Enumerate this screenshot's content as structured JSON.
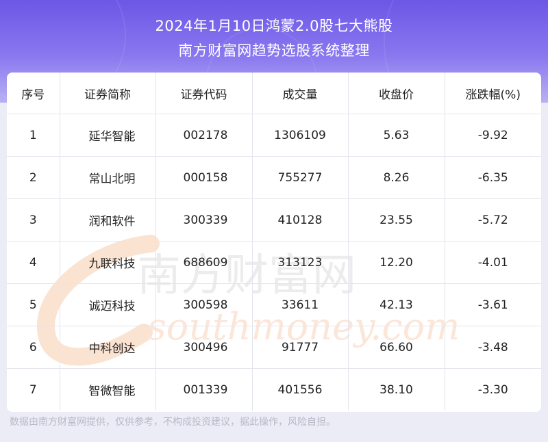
{
  "header": {
    "title": "2024年1月10日鸿蒙2.0股七大熊股",
    "subtitle": "南方财富网趋势选股系统整理"
  },
  "table": {
    "columns": [
      "序号",
      "证券简称",
      "证券代码",
      "成交量",
      "收盘价",
      "涨跌幅(%)"
    ],
    "rows": [
      [
        "1",
        "延华智能",
        "002178",
        "1306109",
        "5.63",
        "-9.92"
      ],
      [
        "2",
        "常山北明",
        "000158",
        "755277",
        "8.26",
        "-6.35"
      ],
      [
        "3",
        "润和软件",
        "300339",
        "410128",
        "23.55",
        "-5.72"
      ],
      [
        "4",
        "九联科技",
        "688609",
        "313123",
        "12.20",
        "-4.01"
      ],
      [
        "5",
        "诚迈科技",
        "300598",
        "33611",
        "42.13",
        "-3.61"
      ],
      [
        "6",
        "中科创达",
        "300496",
        "91777",
        "66.60",
        "-3.48"
      ],
      [
        "7",
        "智微智能",
        "001339",
        "401556",
        "38.10",
        "-3.30"
      ]
    ]
  },
  "watermark": {
    "cn": "南方财富网",
    "en": "southmoney.com"
  },
  "footer": {
    "disclaimer": "数据由南方财富网提供，仅供参考，不构成投资建议，据此操作，风险自担。"
  }
}
